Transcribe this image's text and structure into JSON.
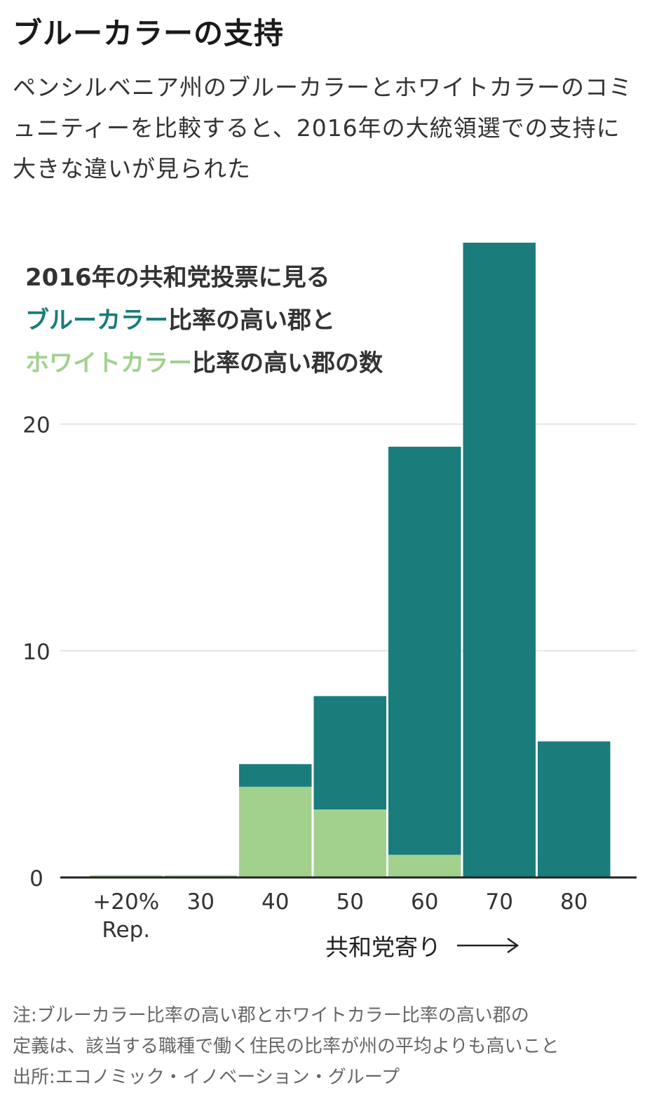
{
  "title": "ブルーカラーの支持",
  "subtitle": "ペンシルベニア州のブルーカラーとホワイトカラーのコミュニティーを比較すると、2016年の大統領選での支持に大きな違いが見られた",
  "legend": {
    "line1": "2016年の共和党投票に見る",
    "line2_series": "ブルーカラー",
    "line2_rest": "比率の高い郡と",
    "line3_series": "ホワイトカラー",
    "line3_rest": "比率の高い郡の数"
  },
  "footnote": {
    "note": "注:ブルーカラー比率の高い郡とホワイトカラー比率の高い郡の定義は、該当する職種で働く住民の比率が州の平均よりも高いこと",
    "note_line1": "注:ブルーカラー比率の高い郡とホワイトカラー比率の高い郡の",
    "note_line2": "定義は、該当する職種で働く住民の比率が州の平均よりも高いこと",
    "source": "出所:エコノミック・イノベーション・グループ"
  },
  "colors": {
    "blue_collar": "#1a7c7b",
    "white_collar": "#a2d18e",
    "grid": "#e3e3e3",
    "axis": "#222222"
  },
  "chart_data": {
    "type": "bar",
    "stacked": true,
    "categories": [
      "+20%\nRep.",
      "30",
      "40",
      "50",
      "60",
      "70",
      "80"
    ],
    "series": [
      {
        "name": "ホワイトカラー",
        "color": "#a2d18e",
        "values": [
          0,
          0,
          4,
          3,
          1,
          0,
          0
        ]
      },
      {
        "name": "ブルーカラー",
        "color": "#1a7c7b",
        "values": [
          0,
          0,
          1,
          5,
          18,
          28,
          6
        ]
      }
    ],
    "y_ticks": [
      "0",
      "10",
      "20"
    ],
    "ylim": [
      0,
      28
    ],
    "xlabel": "共和党寄り",
    "grid": true,
    "legend": "top-left"
  }
}
